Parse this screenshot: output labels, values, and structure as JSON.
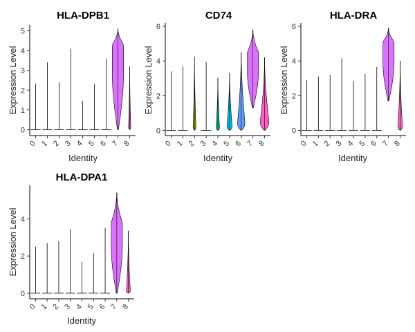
{
  "figure": {
    "background": "#ffffff"
  },
  "chart_data": [
    {
      "type": "violin",
      "title": "HLA-DPB1",
      "xlabel": "Identity",
      "ylabel": "Expression Level",
      "categories": [
        "0",
        "1",
        "2",
        "3",
        "4",
        "5",
        "6",
        "7",
        "8"
      ],
      "yticks": [
        0,
        1,
        2,
        3,
        4,
        5
      ],
      "ylim": [
        -0.3,
        5.3
      ],
      "colors": [
        "#F8766D",
        "#D39200",
        "#93AA00",
        "#00BA38",
        "#00C19F",
        "#00B9E3",
        "#619CFF",
        "#DB72FB",
        "#FF61C3"
      ],
      "violins": [
        {
          "category": "0",
          "max": 2.33,
          "body": 0,
          "median": 0
        },
        {
          "category": "1",
          "max": 3.4,
          "body": 0,
          "median": 0
        },
        {
          "category": "2",
          "max": 2.4,
          "body": 0,
          "median": 0
        },
        {
          "category": "3",
          "max": 4.1,
          "body": 0,
          "median": 0
        },
        {
          "category": "4",
          "max": 1.45,
          "body": 0,
          "median": 0
        },
        {
          "category": "5",
          "max": 2.3,
          "body": 0,
          "median": 0
        },
        {
          "category": "6",
          "max": 3.6,
          "body": 0,
          "median": 0
        },
        {
          "category": "7",
          "min": 0.0,
          "max": 5.1,
          "body": 1,
          "median": 4.3
        },
        {
          "category": "8",
          "min": 0.0,
          "max": 3.2,
          "body": 0.2,
          "median": 0.1
        }
      ]
    },
    {
      "type": "violin",
      "title": "CD74",
      "xlabel": "Identity",
      "ylabel": "Expression Level",
      "categories": [
        "0",
        "1",
        "2",
        "3",
        "4",
        "5",
        "6",
        "7",
        "8"
      ],
      "yticks": [
        0,
        2,
        4,
        6
      ],
      "ylim": [
        -0.3,
        6.2
      ],
      "colors": [
        "#F8766D",
        "#D39200",
        "#93AA00",
        "#00BA38",
        "#00C19F",
        "#00B9E3",
        "#619CFF",
        "#DB72FB",
        "#FF61C3"
      ],
      "violins": [
        {
          "category": "0",
          "max": 3.4,
          "body": 0,
          "median": 0
        },
        {
          "category": "1",
          "max": 3.7,
          "body": 0,
          "median": 0
        },
        {
          "category": "2",
          "min": 0,
          "max": 4.25,
          "body": 0.25,
          "median": 0.2
        },
        {
          "category": "3",
          "max": 3.95,
          "body": 0,
          "median": 0
        },
        {
          "category": "4",
          "min": 0,
          "max": 3.0,
          "body": 0.3,
          "median": 0.2
        },
        {
          "category": "5",
          "min": 0,
          "max": 3.3,
          "body": 0.45,
          "median": 0.3
        },
        {
          "category": "6",
          "min": 0,
          "max": 4.5,
          "body": 0.65,
          "median": 0.5
        },
        {
          "category": "7",
          "min": 1.3,
          "max": 5.8,
          "body": 1,
          "median": 4.5
        },
        {
          "category": "8",
          "min": 0,
          "max": 4.2,
          "body": 0.75,
          "median": 0.6
        }
      ]
    },
    {
      "type": "violin",
      "title": "HLA-DRA",
      "xlabel": "Identity",
      "ylabel": "Expression Level",
      "categories": [
        "0",
        "1",
        "2",
        "3",
        "4",
        "5",
        "6",
        "7",
        "8"
      ],
      "yticks": [
        0,
        2,
        4,
        6
      ],
      "ylim": [
        -0.3,
        6.2
      ],
      "colors": [
        "#F8766D",
        "#D39200",
        "#93AA00",
        "#00BA38",
        "#00C19F",
        "#00B9E3",
        "#619CFF",
        "#DB72FB",
        "#FF61C3"
      ],
      "violins": [
        {
          "category": "0",
          "max": 2.9,
          "body": 0,
          "median": 0
        },
        {
          "category": "1",
          "max": 3.1,
          "body": 0,
          "median": 0
        },
        {
          "category": "2",
          "max": 3.2,
          "body": 0,
          "median": 0
        },
        {
          "category": "3",
          "max": 4.15,
          "body": 0,
          "median": 0
        },
        {
          "category": "4",
          "max": 2.85,
          "body": 0,
          "median": 0
        },
        {
          "category": "5",
          "max": 3.25,
          "body": 0,
          "median": 0
        },
        {
          "category": "6",
          "max": 3.65,
          "body": 0,
          "median": 0
        },
        {
          "category": "7",
          "min": 1.7,
          "max": 5.9,
          "body": 1,
          "median": 5.1
        },
        {
          "category": "8",
          "min": 0,
          "max": 4.0,
          "body": 0.4,
          "median": 0.25
        }
      ]
    },
    {
      "type": "violin",
      "title": "HLA-DPA1",
      "xlabel": "Identity",
      "ylabel": "Expression Level",
      "categories": [
        "0",
        "1",
        "2",
        "3",
        "4",
        "5",
        "6",
        "7",
        "8"
      ],
      "yticks": [
        0,
        2,
        4
      ],
      "ylim": [
        -0.3,
        5.8
      ],
      "colors": [
        "#F8766D",
        "#D39200",
        "#93AA00",
        "#00BA38",
        "#00C19F",
        "#00B9E3",
        "#619CFF",
        "#DB72FB",
        "#FF61C3"
      ],
      "violins": [
        {
          "category": "0",
          "max": 2.5,
          "body": 0,
          "median": 0
        },
        {
          "category": "1",
          "max": 2.7,
          "body": 0,
          "median": 0
        },
        {
          "category": "2",
          "max": 2.8,
          "body": 0,
          "median": 0
        },
        {
          "category": "3",
          "max": 3.45,
          "body": 0,
          "median": 0
        },
        {
          "category": "4",
          "max": 1.7,
          "body": 0,
          "median": 0
        },
        {
          "category": "5",
          "max": 2.15,
          "body": 0,
          "median": 0
        },
        {
          "category": "6",
          "max": 3.5,
          "body": 0,
          "median": 0
        },
        {
          "category": "7",
          "min": 0.0,
          "max": 5.4,
          "body": 1,
          "median": 3.8
        },
        {
          "category": "8",
          "min": 0,
          "max": 3.35,
          "body": 0.35,
          "median": 0.1
        }
      ]
    }
  ]
}
